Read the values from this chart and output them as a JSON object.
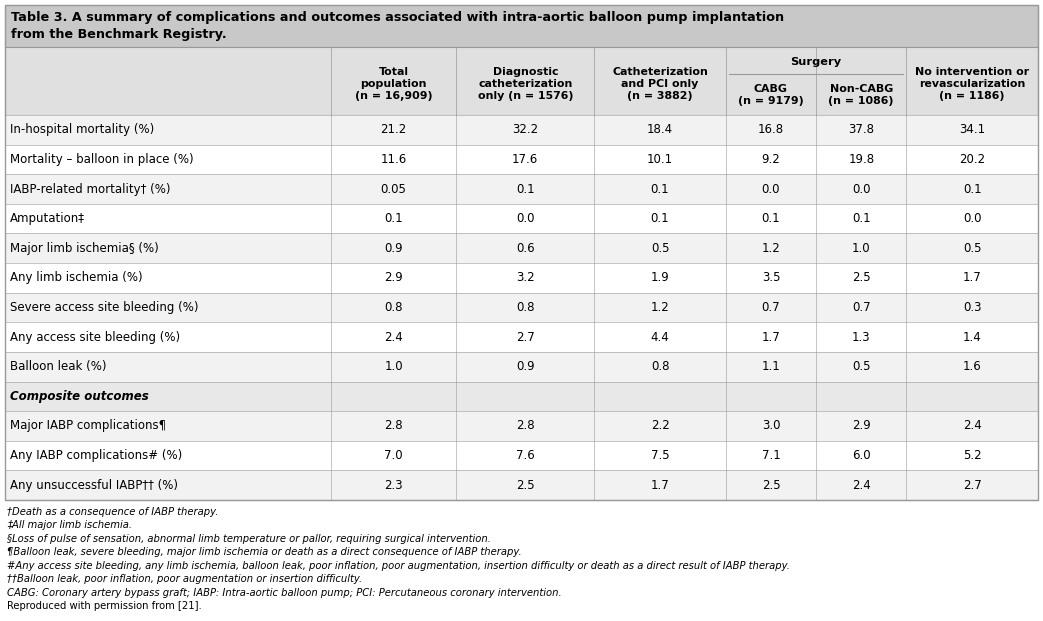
{
  "title_line1": "Table 3. A summary of complications and outcomes associated with intra-aortic balloon pump implantation",
  "title_line2": "from the Benchmark Registry.",
  "col_headers": [
    "Total\npopulation\n(n = 16,909)",
    "Diagnostic\ncatheterization\nonly (n = 1576)",
    "Catheterization\nand PCI only\n(n = 3882)",
    "CABG\n(n = 9179)",
    "Non-CABG\n(n = 1086)",
    "No intervention or\nrevascularization\n(n = 1186)"
  ],
  "surgery_header": "Surgery",
  "rows": [
    {
      "label": "In-hospital mortality (%)",
      "values": [
        "21.2",
        "32.2",
        "18.4",
        "16.8",
        "37.8",
        "34.1"
      ],
      "bold": false,
      "italic": false
    },
    {
      "label": "Mortality – balloon in place (%)",
      "values": [
        "11.6",
        "17.6",
        "10.1",
        "9.2",
        "19.8",
        "20.2"
      ],
      "bold": false,
      "italic": false
    },
    {
      "label": "IABP-related mortality† (%)",
      "values": [
        "0.05",
        "0.1",
        "0.1",
        "0.0",
        "0.0",
        "0.1"
      ],
      "bold": false,
      "italic": false
    },
    {
      "label": "Amputation‡",
      "values": [
        "0.1",
        "0.0",
        "0.1",
        "0.1",
        "0.1",
        "0.0"
      ],
      "bold": false,
      "italic": false
    },
    {
      "label": "Major limb ischemia§ (%)",
      "values": [
        "0.9",
        "0.6",
        "0.5",
        "1.2",
        "1.0",
        "0.5"
      ],
      "bold": false,
      "italic": false
    },
    {
      "label": "Any limb ischemia (%)",
      "values": [
        "2.9",
        "3.2",
        "1.9",
        "3.5",
        "2.5",
        "1.7"
      ],
      "bold": false,
      "italic": false
    },
    {
      "label": "Severe access site bleeding (%)",
      "values": [
        "0.8",
        "0.8",
        "1.2",
        "0.7",
        "0.7",
        "0.3"
      ],
      "bold": false,
      "italic": false
    },
    {
      "label": "Any access site bleeding (%)",
      "values": [
        "2.4",
        "2.7",
        "4.4",
        "1.7",
        "1.3",
        "1.4"
      ],
      "bold": false,
      "italic": false
    },
    {
      "label": "Balloon leak (%)",
      "values": [
        "1.0",
        "0.9",
        "0.8",
        "1.1",
        "0.5",
        "1.6"
      ],
      "bold": false,
      "italic": false
    },
    {
      "label": "Composite outcomes",
      "values": [
        "",
        "",
        "",
        "",
        "",
        ""
      ],
      "bold": true,
      "italic": true
    },
    {
      "label": "Major IABP complications¶",
      "values": [
        "2.8",
        "2.8",
        "2.2",
        "3.0",
        "2.9",
        "2.4"
      ],
      "bold": false,
      "italic": false
    },
    {
      "label": "Any IABP complications# (%)",
      "values": [
        "7.0",
        "7.6",
        "7.5",
        "7.1",
        "6.0",
        "5.2"
      ],
      "bold": false,
      "italic": false
    },
    {
      "label": "Any unsuccessful IABP†† (%)",
      "values": [
        "2.3",
        "2.5",
        "1.7",
        "2.5",
        "2.4",
        "2.7"
      ],
      "bold": false,
      "italic": false
    }
  ],
  "footnotes": [
    "†Death as a consequence of IABP therapy.",
    "‡All major limb ischemia.",
    "§Loss of pulse of sensation, abnormal limb temperature or pallor, requiring surgical intervention.",
    "¶Balloon leak, severe bleeding, major limb ischemia or death as a direct consequence of IABP therapy.",
    "#Any access site bleeding, any limb ischemia, balloon leak, poor inflation, poor augmentation, insertion difficulty or death as a direct result of IABP therapy.",
    "††Balloon leak, poor inflation, poor augmentation or insertion difficulty.",
    "CABG: Coronary artery bypass graft; IABP: Intra-aortic balloon pump; PCI: Percutaneous coronary intervention.",
    "Reproduced with permission from [21]."
  ],
  "footnote_italic": [
    true,
    true,
    true,
    true,
    true,
    true,
    true,
    false
  ],
  "title_bg": "#c8c8c8",
  "header_bg": "#e0e0e0",
  "composite_bg": "#e8e8e8",
  "row_bg_alt": "#f2f2f2",
  "row_bg_norm": "#ffffff",
  "border_color": "#999999",
  "text_color": "#000000",
  "title_fontsize": 9.2,
  "header_fontsize": 8.2,
  "data_fontsize": 8.5,
  "footnote_fontsize": 7.2,
  "col_widths_rel": [
    2.6,
    1.0,
    1.1,
    1.05,
    0.72,
    0.72,
    1.05
  ]
}
